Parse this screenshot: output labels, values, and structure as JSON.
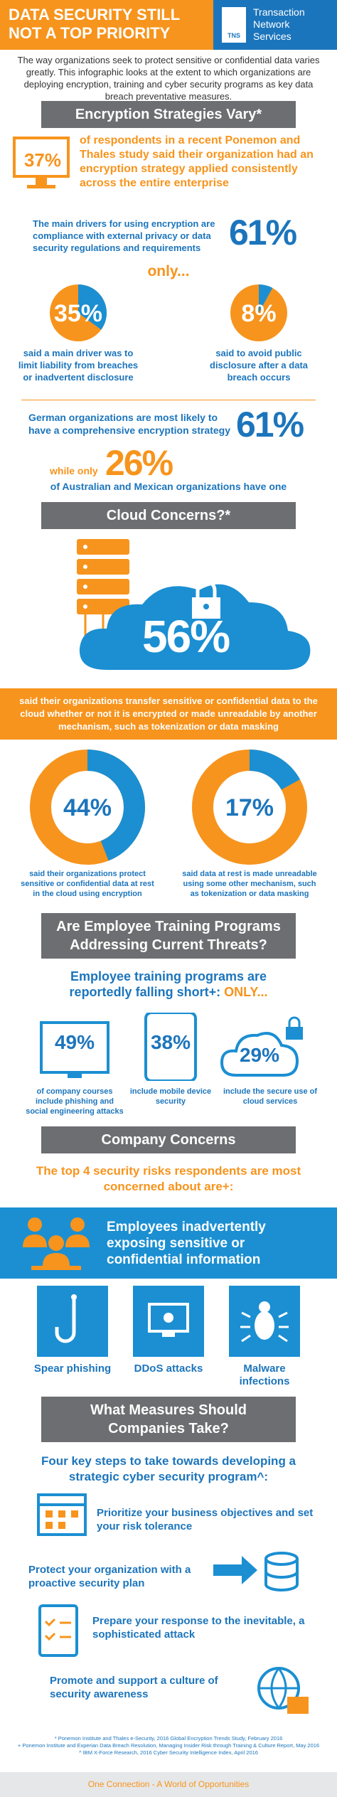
{
  "header": {
    "title_lines": [
      "DATA SECURITY STILL",
      "NOT A TOP PRIORITY"
    ],
    "logo": "TNS",
    "brand_lines": [
      "Transaction",
      "Network",
      "Services"
    ]
  },
  "intro": "The way organizations seek to protect sensitive or confidential data varies greatly. This infographic looks at the extent to which organizations are deploying encryption, training and cyber security programs as key data breach preventative measures.",
  "encryption": {
    "heading": "Encryption Strategies Vary*",
    "stat": {
      "value": "37%",
      "text": "of respondents in a recent Ponemon and Thales study said their organization had an encryption strategy applied consistently across the entire enterprise"
    },
    "drivers": {
      "text": "The main drivers for using encryption are compliance with external privacy or data security regulations and requirements",
      "value": "61%"
    },
    "only": "only...",
    "donuts": [
      {
        "value": 35,
        "label": "35%",
        "caption": "said a main driver was to limit liability from breaches or inadvertent disclosure"
      },
      {
        "value": 8,
        "label": "8%",
        "caption": "said to avoid public disclosure after a data breach occurs"
      }
    ],
    "german": {
      "text": "German organizations are most likely to have a comprehensive encryption strategy",
      "value": "61%"
    },
    "others": {
      "prefix": "while only",
      "value": "26%",
      "text": "of Australian and Mexican organizations have one"
    }
  },
  "cloud": {
    "heading": "Cloud Concerns?*",
    "stat": "56%",
    "band": "said their organizations transfer sensitive or confidential data to the cloud whether or not it is encrypted or made unreadable by another mechanism, such as tokenization or data masking",
    "donuts": [
      {
        "value": 44,
        "label": "44%",
        "caption": "said their organizations protect sensitive or confidential data at rest in the cloud using encryption"
      },
      {
        "value": 17,
        "label": "17%",
        "caption": "said data at rest is made unreadable using some other mechanism, such as tokenization or data masking"
      }
    ]
  },
  "training": {
    "heading_lines": [
      "Are Employee Training Programs",
      "Addressing Current Threats?"
    ],
    "intro": "Employee training programs are reportedly falling short+:",
    "only": "ONLY...",
    "items": [
      {
        "value": "49%",
        "caption": "of company courses include phishing and social engineering attacks"
      },
      {
        "value": "38%",
        "caption": "include mobile device security"
      },
      {
        "value": "29%",
        "caption": "include the secure use of cloud services"
      }
    ]
  },
  "concerns": {
    "heading": "Company Concerns",
    "intro": "The top 4 security risks respondents are most concerned about are+:",
    "top": "Employees inadvertently exposing sensitive or confidential information",
    "risks": [
      "Spear phishing",
      "DDoS attacks",
      "Malware infections"
    ]
  },
  "measures": {
    "heading_lines": [
      "What Measures Should",
      "Companies Take?"
    ],
    "intro": "Four key steps to take towards developing a strategic cyber security program^:",
    "steps": [
      "Prioritize your business objectives and set your risk tolerance",
      "Protect your organization with a proactive security plan",
      "Prepare your response to the inevitable, a sophisticated attack",
      "Promote and support a culture of security awareness"
    ]
  },
  "footnotes": [
    "* Ponemon Institute and Thales e-Security, 2016 Global Encryption Trends Study, February 2016",
    "+ Ponemon Institute and Experian Data Breach Resolution, Managing Insider Risk through Training & Culture Report, May 2016",
    "^ IBM X-Force Research, 2016 Cyber Security Intelligence Index, April 2016"
  ],
  "footer": "One Connection - A World of Opportunities"
}
